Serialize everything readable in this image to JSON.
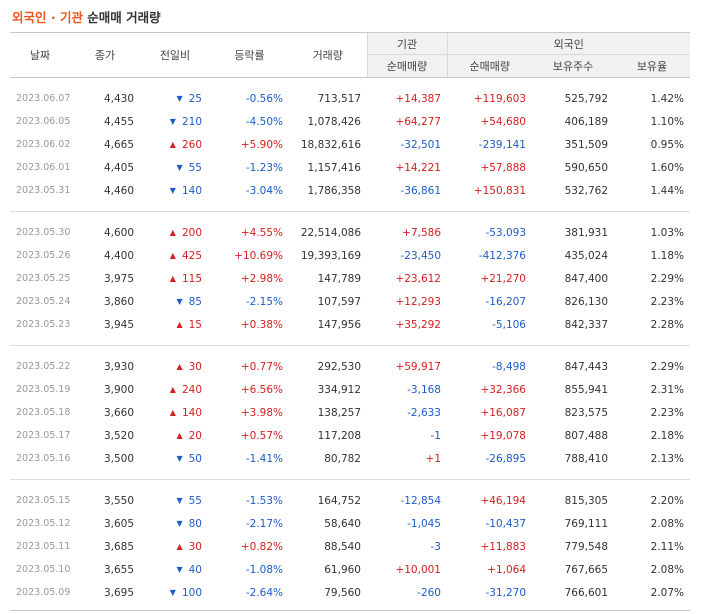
{
  "title": {
    "part1": "외국인 · 기관",
    "part2": " 순매매 거래량"
  },
  "header": {
    "date": "날짜",
    "close": "종가",
    "change": "전일비",
    "rate": "등락률",
    "volume": "거래량",
    "institution": "기관",
    "foreign": "외국인",
    "inst_net": "순매매량",
    "foreign_net": "순매매량",
    "holdings": "보유주수",
    "ratio": "보유율"
  },
  "colors": {
    "up": "#d42020",
    "down": "#1d5cc8",
    "accent": "#e8581c"
  },
  "icons": {
    "up": "triangle-up-icon",
    "down": "triangle-down-icon"
  },
  "groups": [
    {
      "rows": [
        {
          "date": "2023.06.07",
          "close": "4,430",
          "dir": "down",
          "change": "25",
          "rate": "-0.56%",
          "volume": "713,517",
          "inst": "+14,387",
          "foreign": "+119,603",
          "holdings": "525,792",
          "ratio": "1.42%"
        },
        {
          "date": "2023.06.05",
          "close": "4,455",
          "dir": "down",
          "change": "210",
          "rate": "-4.50%",
          "volume": "1,078,426",
          "inst": "+64,277",
          "foreign": "+54,680",
          "holdings": "406,189",
          "ratio": "1.10%"
        },
        {
          "date": "2023.06.02",
          "close": "4,665",
          "dir": "up",
          "change": "260",
          "rate": "+5.90%",
          "volume": "18,832,616",
          "inst": "-32,501",
          "foreign": "-239,141",
          "holdings": "351,509",
          "ratio": "0.95%"
        },
        {
          "date": "2023.06.01",
          "close": "4,405",
          "dir": "down",
          "change": "55",
          "rate": "-1.23%",
          "volume": "1,157,416",
          "inst": "+14,221",
          "foreign": "+57,888",
          "holdings": "590,650",
          "ratio": "1.60%"
        },
        {
          "date": "2023.05.31",
          "close": "4,460",
          "dir": "down",
          "change": "140",
          "rate": "-3.04%",
          "volume": "1,786,358",
          "inst": "-36,861",
          "foreign": "+150,831",
          "holdings": "532,762",
          "ratio": "1.44%"
        }
      ]
    },
    {
      "rows": [
        {
          "date": "2023.05.30",
          "close": "4,600",
          "dir": "up",
          "change": "200",
          "rate": "+4.55%",
          "volume": "22,514,086",
          "inst": "+7,586",
          "foreign": "-53,093",
          "holdings": "381,931",
          "ratio": "1.03%"
        },
        {
          "date": "2023.05.26",
          "close": "4,400",
          "dir": "up",
          "change": "425",
          "rate": "+10.69%",
          "volume": "19,393,169",
          "inst": "-23,450",
          "foreign": "-412,376",
          "holdings": "435,024",
          "ratio": "1.18%"
        },
        {
          "date": "2023.05.25",
          "close": "3,975",
          "dir": "up",
          "change": "115",
          "rate": "+2.98%",
          "volume": "147,789",
          "inst": "+23,612",
          "foreign": "+21,270",
          "holdings": "847,400",
          "ratio": "2.29%"
        },
        {
          "date": "2023.05.24",
          "close": "3,860",
          "dir": "down",
          "change": "85",
          "rate": "-2.15%",
          "volume": "107,597",
          "inst": "+12,293",
          "foreign": "-16,207",
          "holdings": "826,130",
          "ratio": "2.23%"
        },
        {
          "date": "2023.05.23",
          "close": "3,945",
          "dir": "up",
          "change": "15",
          "rate": "+0.38%",
          "volume": "147,956",
          "inst": "+35,292",
          "foreign": "-5,106",
          "holdings": "842,337",
          "ratio": "2.28%"
        }
      ]
    },
    {
      "rows": [
        {
          "date": "2023.05.22",
          "close": "3,930",
          "dir": "up",
          "change": "30",
          "rate": "+0.77%",
          "volume": "292,530",
          "inst": "+59,917",
          "foreign": "-8,498",
          "holdings": "847,443",
          "ratio": "2.29%"
        },
        {
          "date": "2023.05.19",
          "close": "3,900",
          "dir": "up",
          "change": "240",
          "rate": "+6.56%",
          "volume": "334,912",
          "inst": "-3,168",
          "foreign": "+32,366",
          "holdings": "855,941",
          "ratio": "2.31%"
        },
        {
          "date": "2023.05.18",
          "close": "3,660",
          "dir": "up",
          "change": "140",
          "rate": "+3.98%",
          "volume": "138,257",
          "inst": "-2,633",
          "foreign": "+16,087",
          "holdings": "823,575",
          "ratio": "2.23%"
        },
        {
          "date": "2023.05.17",
          "close": "3,520",
          "dir": "up",
          "change": "20",
          "rate": "+0.57%",
          "volume": "117,208",
          "inst": "-1",
          "foreign": "+19,078",
          "holdings": "807,488",
          "ratio": "2.18%"
        },
        {
          "date": "2023.05.16",
          "close": "3,500",
          "dir": "down",
          "change": "50",
          "rate": "-1.41%",
          "volume": "80,782",
          "inst": "+1",
          "foreign": "-26,895",
          "holdings": "788,410",
          "ratio": "2.13%"
        }
      ]
    },
    {
      "rows": [
        {
          "date": "2023.05.15",
          "close": "3,550",
          "dir": "down",
          "change": "55",
          "rate": "-1.53%",
          "volume": "164,752",
          "inst": "-12,854",
          "foreign": "+46,194",
          "holdings": "815,305",
          "ratio": "2.20%"
        },
        {
          "date": "2023.05.12",
          "close": "3,605",
          "dir": "down",
          "change": "80",
          "rate": "-2.17%",
          "volume": "58,640",
          "inst": "-1,045",
          "foreign": "-10,437",
          "holdings": "769,111",
          "ratio": "2.08%"
        },
        {
          "date": "2023.05.11",
          "close": "3,685",
          "dir": "up",
          "change": "30",
          "rate": "+0.82%",
          "volume": "88,540",
          "inst": "-3",
          "foreign": "+11,883",
          "holdings": "779,548",
          "ratio": "2.11%"
        },
        {
          "date": "2023.05.10",
          "close": "3,655",
          "dir": "down",
          "change": "40",
          "rate": "-1.08%",
          "volume": "61,960",
          "inst": "+10,001",
          "foreign": "+1,064",
          "holdings": "767,665",
          "ratio": "2.08%"
        },
        {
          "date": "2023.05.09",
          "close": "3,695",
          "dir": "down",
          "change": "100",
          "rate": "-2.64%",
          "volume": "79,560",
          "inst": "-260",
          "foreign": "-31,270",
          "holdings": "766,601",
          "ratio": "2.07%"
        }
      ]
    }
  ]
}
